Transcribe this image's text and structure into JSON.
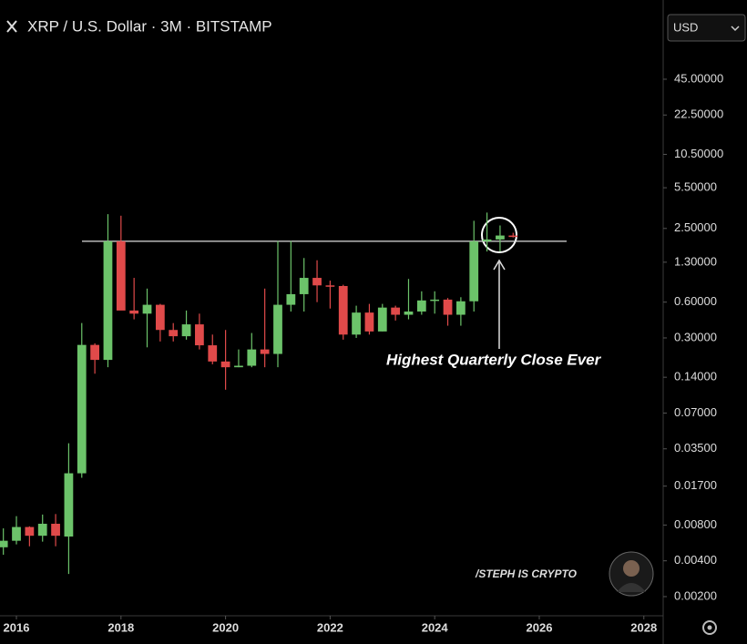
{
  "chart_data": {
    "type": "candlestick",
    "title": "XRP / U.S. Dollar · 3M · BITSTAMP",
    "currency": "USD",
    "annotation": "Highest Quarterly Close Ever",
    "watermark": "/STEPH IS CRYPTO",
    "log_scale": true,
    "up_color": "#6cc36a",
    "down_color": "#e04a4a",
    "reference_line": 1.95,
    "x": [
      2015.75,
      2016,
      2016.25,
      2016.5,
      2016.75,
      2017,
      2017.25,
      2017.5,
      2017.75,
      2018,
      2018.25,
      2018.5,
      2018.75,
      2019,
      2019.25,
      2019.5,
      2019.75,
      2020,
      2020.25,
      2020.5,
      2020.75,
      2021,
      2021.25,
      2021.5,
      2021.75,
      2022,
      2022.25,
      2022.5,
      2022.75,
      2023,
      2023.25,
      2023.5,
      2023.75,
      2024,
      2024.25,
      2024.5,
      2024.75,
      2025,
      2025.25,
      2025.5
    ],
    "open": [
      0.0052,
      0.0059,
      0.0077,
      0.0065,
      0.0082,
      0.0064,
      0.0218,
      0.262,
      0.196,
      1.95,
      0.51,
      0.48,
      0.57,
      0.35,
      0.31,
      0.39,
      0.26,
      0.19,
      0.17,
      0.175,
      0.24,
      0.22,
      0.57,
      0.7,
      0.96,
      0.83,
      0.82,
      0.32,
      0.49,
      0.34,
      0.54,
      0.47,
      0.5,
      0.62,
      0.63,
      0.47,
      0.61,
      1.95,
      2.02,
      2.18
    ],
    "high": [
      0.0075,
      0.0095,
      0.0078,
      0.0098,
      0.0099,
      0.039,
      0.4,
      0.27,
      3.3,
      3.2,
      0.96,
      0.78,
      0.58,
      0.4,
      0.51,
      0.48,
      0.32,
      0.35,
      0.24,
      0.33,
      0.78,
      1.96,
      1.96,
      1.41,
      1.35,
      0.91,
      0.84,
      0.56,
      0.58,
      0.58,
      0.56,
      0.94,
      0.74,
      0.74,
      0.65,
      0.66,
      2.9,
      3.4,
      2.65,
      2.3
    ],
    "low": [
      0.0045,
      0.0055,
      0.0053,
      0.0058,
      0.0053,
      0.0031,
      0.02,
      0.15,
      0.17,
      0.52,
      0.43,
      0.25,
      0.28,
      0.28,
      0.29,
      0.24,
      0.18,
      0.11,
      0.17,
      0.17,
      0.17,
      0.17,
      0.5,
      0.5,
      0.6,
      0.53,
      0.29,
      0.3,
      0.32,
      0.34,
      0.42,
      0.43,
      0.47,
      0.48,
      0.38,
      0.38,
      0.5,
      1.6,
      1.6,
      2.1
    ],
    "close": [
      0.0059,
      0.0077,
      0.0065,
      0.0082,
      0.0065,
      0.0218,
      0.262,
      0.196,
      1.95,
      0.51,
      0.48,
      0.57,
      0.35,
      0.31,
      0.39,
      0.26,
      0.19,
      0.17,
      0.175,
      0.24,
      0.22,
      0.57,
      0.7,
      0.96,
      0.83,
      0.82,
      0.32,
      0.49,
      0.34,
      0.54,
      0.47,
      0.5,
      0.62,
      0.63,
      0.47,
      0.61,
      1.95,
      2.02,
      2.18,
      2.12
    ],
    "xlim": [
      2015.686,
      2028.37
    ],
    "xticks": [
      2016,
      2018,
      2020,
      2022,
      2024,
      2026,
      2028
    ],
    "ylim": [
      0.00138,
      175
    ],
    "yticks": [
      {
        "value": 45,
        "label": "45.00000"
      },
      {
        "value": 22.5,
        "label": "22.50000"
      },
      {
        "value": 10.5,
        "label": "10.50000"
      },
      {
        "value": 5.5,
        "label": "5.50000"
      },
      {
        "value": 2.5,
        "label": "2.50000"
      },
      {
        "value": 1.3,
        "label": "1.30000"
      },
      {
        "value": 0.6,
        "label": "0.60000"
      },
      {
        "value": 0.3,
        "label": "0.30000"
      },
      {
        "value": 0.14,
        "label": "0.14000"
      },
      {
        "value": 0.07,
        "label": "0.07000"
      },
      {
        "value": 0.035,
        "label": "0.03500"
      },
      {
        "value": 0.017,
        "label": "0.01700"
      },
      {
        "value": 0.008,
        "label": "0.00800"
      },
      {
        "value": 0.004,
        "label": "0.00400"
      },
      {
        "value": 0.002,
        "label": "0.00200"
      }
    ]
  }
}
